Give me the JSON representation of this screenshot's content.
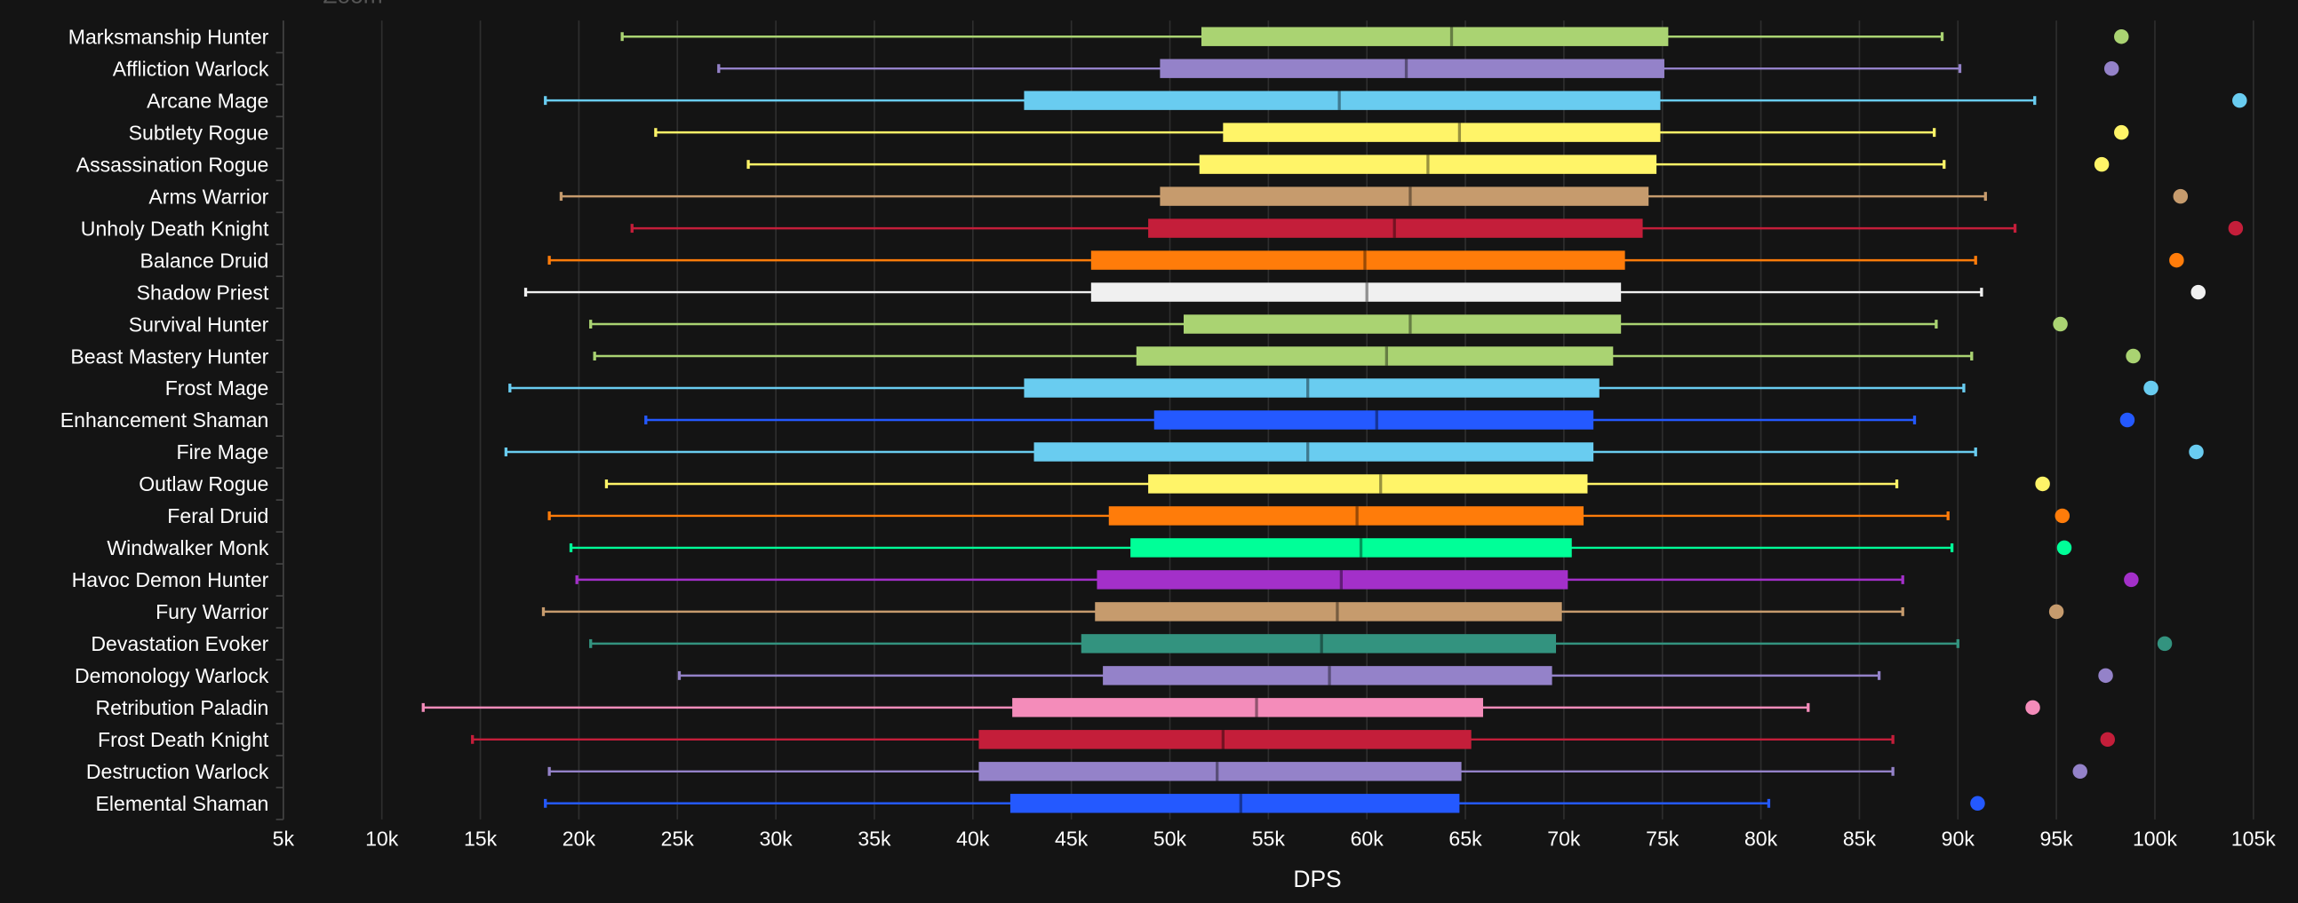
{
  "chart_data": {
    "type": "boxplot",
    "orientation": "horizontal",
    "header_fragment": "Zoom",
    "xlabel": "DPS",
    "xlim": [
      5,
      105
    ],
    "x_unit": "k",
    "x_ticks": [
      "5k",
      "10k",
      "15k",
      "20k",
      "25k",
      "30k",
      "35k",
      "40k",
      "45k",
      "50k",
      "55k",
      "60k",
      "65k",
      "70k",
      "75k",
      "80k",
      "85k",
      "90k",
      "95k",
      "100k",
      "105k"
    ],
    "grid": true,
    "series": [
      {
        "name": "Marksmanship Hunter",
        "color": "#aad372",
        "min": 22.2,
        "q1": 51.6,
        "median": 64.3,
        "q3": 75.3,
        "max": 89.2,
        "outlier": 98.3
      },
      {
        "name": "Affliction Warlock",
        "color": "#9482c9",
        "min": 27.1,
        "q1": 49.5,
        "median": 62.0,
        "q3": 75.1,
        "max": 90.1,
        "outlier": 97.8
      },
      {
        "name": "Arcane Mage",
        "color": "#69ccf0",
        "min": 18.3,
        "q1": 42.6,
        "median": 58.6,
        "q3": 74.9,
        "max": 93.9,
        "outlier": 104.3
      },
      {
        "name": "Subtlety Rogue",
        "color": "#fff468",
        "min": 23.9,
        "q1": 52.7,
        "median": 64.7,
        "q3": 74.9,
        "max": 88.8,
        "outlier": 98.3
      },
      {
        "name": "Assassination Rogue",
        "color": "#fff468",
        "min": 28.6,
        "q1": 51.5,
        "median": 63.1,
        "q3": 74.7,
        "max": 89.3,
        "outlier": 97.3
      },
      {
        "name": "Arms Warrior",
        "color": "#c69b6d",
        "min": 19.1,
        "q1": 49.5,
        "median": 62.2,
        "q3": 74.3,
        "max": 91.4,
        "outlier": 101.3
      },
      {
        "name": "Unholy Death Knight",
        "color": "#c41e3a",
        "min": 22.7,
        "q1": 48.9,
        "median": 61.4,
        "q3": 74.0,
        "max": 92.9,
        "outlier": 104.1
      },
      {
        "name": "Balance Druid",
        "color": "#ff7c0a",
        "min": 18.5,
        "q1": 46.0,
        "median": 59.9,
        "q3": 73.1,
        "max": 90.9,
        "outlier": 101.1
      },
      {
        "name": "Shadow Priest",
        "color": "#f0f0f0",
        "min": 17.3,
        "q1": 46.0,
        "median": 60.0,
        "q3": 72.9,
        "max": 91.2,
        "outlier": 102.2
      },
      {
        "name": "Survival Hunter",
        "color": "#aad372",
        "min": 20.6,
        "q1": 50.7,
        "median": 62.2,
        "q3": 72.9,
        "max": 88.9,
        "outlier": 95.2
      },
      {
        "name": "Beast Mastery Hunter",
        "color": "#aad372",
        "min": 20.8,
        "q1": 48.3,
        "median": 61.0,
        "q3": 72.5,
        "max": 90.7,
        "outlier": 98.9
      },
      {
        "name": "Frost Mage",
        "color": "#69ccf0",
        "min": 16.5,
        "q1": 42.6,
        "median": 57.0,
        "q3": 71.8,
        "max": 90.3,
        "outlier": 99.8
      },
      {
        "name": "Enhancement Shaman",
        "color": "#2459ff",
        "min": 23.4,
        "q1": 49.2,
        "median": 60.5,
        "q3": 71.5,
        "max": 87.8,
        "outlier": 98.6
      },
      {
        "name": "Fire Mage",
        "color": "#69ccf0",
        "min": 16.3,
        "q1": 43.1,
        "median": 57.0,
        "q3": 71.5,
        "max": 90.9,
        "outlier": 102.1
      },
      {
        "name": "Outlaw Rogue",
        "color": "#fff468",
        "min": 21.4,
        "q1": 48.9,
        "median": 60.7,
        "q3": 71.2,
        "max": 86.9,
        "outlier": 94.3
      },
      {
        "name": "Feral Druid",
        "color": "#ff7c0a",
        "min": 18.5,
        "q1": 46.9,
        "median": 59.5,
        "q3": 71.0,
        "max": 89.5,
        "outlier": 95.3
      },
      {
        "name": "Windwalker Monk",
        "color": "#00ff98",
        "min": 19.6,
        "q1": 48.0,
        "median": 59.7,
        "q3": 70.4,
        "max": 89.7,
        "outlier": 95.4
      },
      {
        "name": "Havoc Demon Hunter",
        "color": "#a330c9",
        "min": 19.9,
        "q1": 46.3,
        "median": 58.7,
        "q3": 70.2,
        "max": 87.2,
        "outlier": 98.8
      },
      {
        "name": "Fury Warrior",
        "color": "#c69b6d",
        "min": 18.2,
        "q1": 46.2,
        "median": 58.5,
        "q3": 69.9,
        "max": 87.2,
        "outlier": 95.0
      },
      {
        "name": "Devastation Evoker",
        "color": "#33937f",
        "min": 20.6,
        "q1": 45.5,
        "median": 57.7,
        "q3": 69.6,
        "max": 90.0,
        "outlier": 100.5
      },
      {
        "name": "Demonology Warlock",
        "color": "#9482c9",
        "min": 25.1,
        "q1": 46.6,
        "median": 58.1,
        "q3": 69.4,
        "max": 86.0,
        "outlier": 97.5
      },
      {
        "name": "Retribution Paladin",
        "color": "#f48cba",
        "min": 12.1,
        "q1": 42.0,
        "median": 54.4,
        "q3": 65.9,
        "max": 82.4,
        "outlier": 93.8
      },
      {
        "name": "Frost Death Knight",
        "color": "#c41e3a",
        "min": 14.6,
        "q1": 40.3,
        "median": 52.7,
        "q3": 65.3,
        "max": 86.7,
        "outlier": 97.6
      },
      {
        "name": "Destruction Warlock",
        "color": "#9482c9",
        "min": 18.5,
        "q1": 40.3,
        "median": 52.4,
        "q3": 64.8,
        "max": 86.7,
        "outlier": 96.2
      },
      {
        "name": "Elemental Shaman",
        "color": "#2459ff",
        "min": 18.3,
        "q1": 41.9,
        "median": 53.6,
        "q3": 64.7,
        "max": 80.4,
        "outlier": 91.0
      }
    ]
  }
}
